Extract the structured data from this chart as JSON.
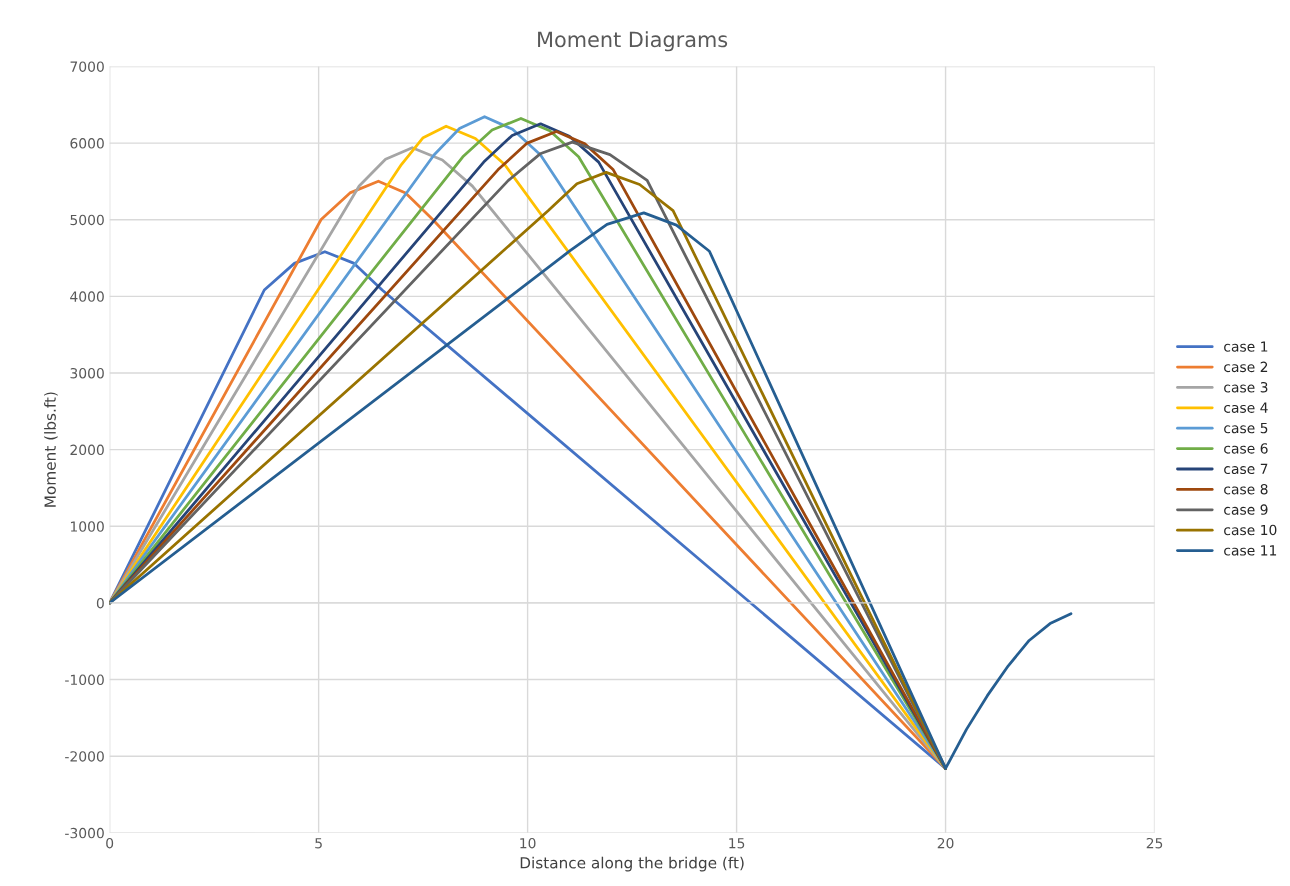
{
  "chart_data": {
    "type": "line",
    "title": "Moment Diagrams",
    "xlabel": "Distance along the bridge (ft)",
    "ylabel": "Moment (lbs.ft)",
    "xlim": [
      0,
      25
    ],
    "xticks": [
      0,
      5,
      10,
      15,
      20,
      25
    ],
    "ylim": [
      -3000,
      7000
    ],
    "yticks": [
      -3000,
      -2000,
      -1000,
      0,
      1000,
      2000,
      3000,
      4000,
      5000,
      6000,
      7000
    ],
    "grid": true,
    "legend": "right",
    "marker": "none",
    "line_style": "solid",
    "series": [
      {
        "name": "case 1",
        "color": "#4472c4",
        "x": [
          0,
          3.7,
          4.42,
          5.15,
          5.85,
          6.52,
          20
        ],
        "values": [
          0,
          4083,
          4430,
          4583,
          4430,
          4083,
          -2160
        ]
      },
      {
        "name": "case 2",
        "color": "#ed7d31",
        "x": [
          0,
          5.06,
          5.75,
          6.43,
          7.08,
          7.73,
          20
        ],
        "values": [
          0,
          5003,
          5350,
          5503,
          5350,
          5003,
          -2160
        ]
      },
      {
        "name": "case 3",
        "color": "#a5a5a5",
        "x": [
          0,
          5.97,
          6.6,
          7.24,
          7.96,
          8.68,
          20
        ],
        "values": [
          0,
          5439,
          5790,
          5939,
          5780,
          5439,
          -2160
        ]
      },
      {
        "name": "case 4",
        "color": "#ffc000",
        "x": [
          0,
          6.98,
          7.5,
          8.05,
          8.75,
          9.45,
          20
        ],
        "values": [
          0,
          5720,
          6070,
          6220,
          6060,
          5720,
          -2160
        ]
      },
      {
        "name": "case 5",
        "color": "#5b9bd5",
        "x": [
          0,
          7.76,
          8.37,
          8.97,
          9.64,
          10.31,
          20
        ],
        "values": [
          0,
          5844,
          6190,
          6344,
          6180,
          5844,
          -2160
        ]
      },
      {
        "name": "case 6",
        "color": "#70ad47",
        "x": [
          0,
          8.45,
          9.15,
          9.84,
          10.53,
          11.22,
          20
        ],
        "values": [
          0,
          5821,
          6170,
          6321,
          6160,
          5821,
          -2160
        ]
      },
      {
        "name": "case 7",
        "color": "#264478",
        "x": [
          0,
          8.95,
          9.63,
          10.31,
          11.0,
          11.7,
          20
        ],
        "values": [
          0,
          5752,
          6100,
          6252,
          6090,
          5752,
          -2160
        ]
      },
      {
        "name": "case 8",
        "color": "#9e480e",
        "x": [
          0,
          9.29,
          9.99,
          10.69,
          11.37,
          12.05,
          20
        ],
        "values": [
          0,
          5651,
          6000,
          6151,
          5990,
          5651,
          -2160
        ]
      },
      {
        "name": "case 9",
        "color": "#636363",
        "x": [
          0,
          9.54,
          10.3,
          11.07,
          11.97,
          12.86,
          20
        ],
        "values": [
          0,
          5513,
          5860,
          6013,
          5850,
          5513,
          -2160
        ]
      },
      {
        "name": "case 10",
        "color": "#997300",
        "x": [
          0,
          10.49,
          11.18,
          11.88,
          12.68,
          13.48,
          20
        ],
        "values": [
          0,
          5118,
          5470,
          5618,
          5460,
          5118,
          -2160
        ]
      },
      {
        "name": "case 11",
        "color": "#255e91",
        "x": [
          0,
          11.0,
          11.9,
          12.78,
          13.56,
          14.35,
          20,
          20.5,
          21,
          21.5,
          22,
          22.5,
          23
        ],
        "values": [
          0,
          4589,
          4940,
          5089,
          4930,
          4589,
          -2160,
          -1650,
          -1210,
          -820,
          -490,
          -270,
          -140
        ]
      }
    ]
  }
}
